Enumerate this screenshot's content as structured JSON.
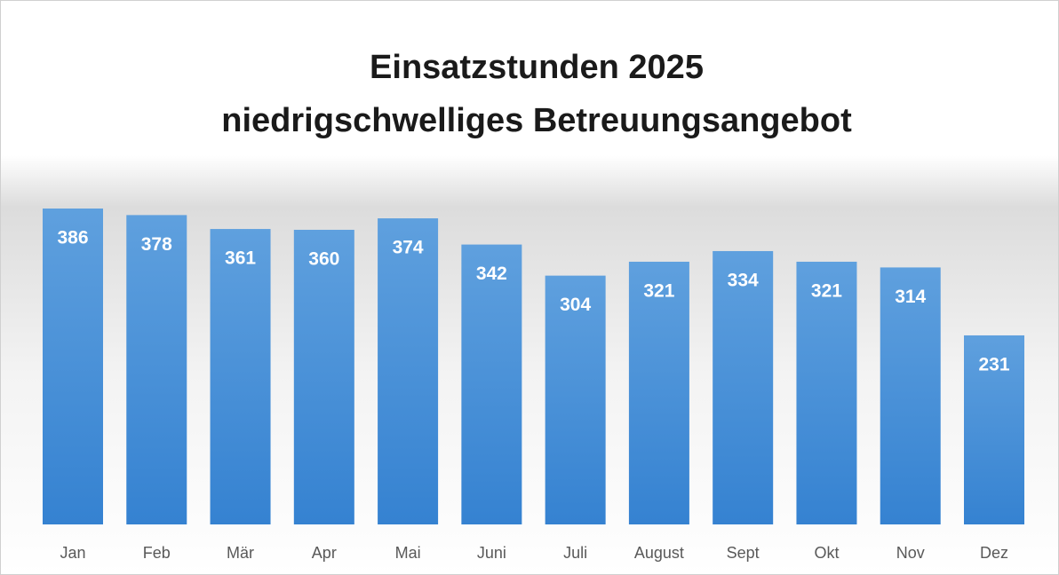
{
  "chart_data": {
    "type": "bar",
    "title": [
      "Einsatzstunden 2025",
      "niedrigschwelliges Betreuungsangebot"
    ],
    "categories": [
      "Jan",
      "Feb",
      "Mär",
      "Apr",
      "Mai",
      "Juni",
      "Juli",
      "August",
      "Sept",
      "Okt",
      "Nov",
      "Dez"
    ],
    "values": [
      386,
      378,
      361,
      360,
      374,
      342,
      304,
      321,
      334,
      321,
      314,
      231
    ],
    "color": "#4a90d9"
  }
}
